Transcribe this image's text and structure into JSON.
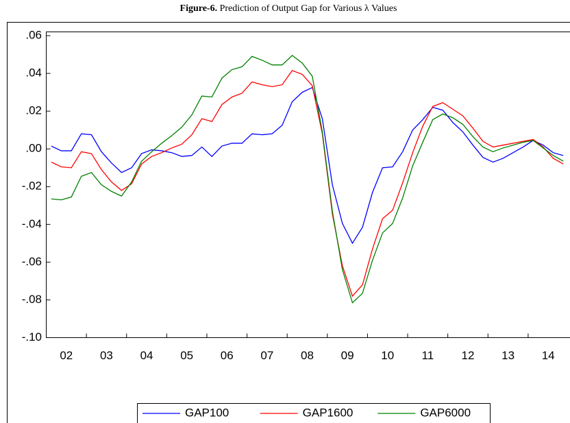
{
  "chart_data": {
    "type": "line",
    "title_label": "Figure-6.",
    "title": "Prediction of Output Gap for Various λ Values",
    "categories": [
      null,
      "02",
      null,
      null,
      null,
      "03",
      null,
      null,
      null,
      "04",
      null,
      null,
      null,
      "05",
      null,
      null,
      null,
      "06",
      null,
      null,
      null,
      "07",
      null,
      null,
      null,
      "08",
      null,
      null,
      null,
      "09",
      null,
      null,
      null,
      "10",
      null,
      null,
      null,
      "11",
      null,
      null,
      null,
      "12",
      null,
      null,
      null,
      "13",
      null,
      null,
      null,
      "14",
      null,
      null
    ],
    "ylim": [
      -0.1,
      0.062
    ],
    "yticks": [
      {
        "value": 0.06,
        "label": ".06"
      },
      {
        "value": 0.04,
        "label": ".04"
      },
      {
        "value": 0.02,
        "label": ".02"
      },
      {
        "value": 0.0,
        "label": ".00"
      },
      {
        "value": -0.02,
        "label": "-.02"
      },
      {
        "value": -0.04,
        "label": "-.04"
      },
      {
        "value": -0.06,
        "label": "-.06"
      },
      {
        "value": -0.08,
        "label": "-.08"
      },
      {
        "value": -0.1,
        "label": "-.10"
      }
    ],
    "grid": false,
    "legend": "bottom",
    "series": [
      {
        "name": "GAP100",
        "color": "#0000ff",
        "values": [
          0.0015,
          -0.001,
          -0.001,
          0.008,
          0.0075,
          -0.0015,
          -0.0075,
          -0.0125,
          -0.01,
          -0.0025,
          -0.0005,
          -0.001,
          -0.002,
          -0.004,
          -0.0035,
          0.001,
          -0.004,
          0.0015,
          0.003,
          0.003,
          0.008,
          0.0075,
          0.008,
          0.0125,
          0.025,
          0.03,
          0.0325,
          0.016,
          -0.019,
          -0.0395,
          -0.05,
          -0.0415,
          -0.023,
          -0.01,
          -0.0095,
          -0.0015,
          0.01,
          0.0155,
          0.022,
          0.0205,
          0.014,
          0.009,
          0.002,
          -0.0045,
          -0.007,
          -0.005,
          -0.002,
          0.001,
          0.0045,
          0.002,
          -0.002,
          -0.0035
        ]
      },
      {
        "name": "GAP1600",
        "color": "#ff0000",
        "values": [
          -0.007,
          -0.0095,
          -0.01,
          -0.0015,
          -0.0025,
          -0.011,
          -0.0175,
          -0.022,
          -0.0185,
          -0.008,
          -0.004,
          -0.002,
          0.0005,
          0.0025,
          0.0075,
          0.016,
          0.0145,
          0.0235,
          0.0275,
          0.0295,
          0.0355,
          0.034,
          0.033,
          0.034,
          0.0415,
          0.0395,
          0.0335,
          0.008,
          -0.0345,
          -0.062,
          -0.078,
          -0.072,
          -0.053,
          -0.037,
          -0.0325,
          -0.018,
          -0.002,
          0.012,
          0.0225,
          0.0245,
          0.021,
          0.0175,
          0.011,
          0.004,
          0.001,
          0.002,
          0.003,
          0.004,
          0.005,
          0.001,
          -0.005,
          -0.008
        ]
      },
      {
        "name": "GAP6000",
        "color": "#008000",
        "values": [
          -0.0265,
          -0.027,
          -0.0255,
          -0.0145,
          -0.0125,
          -0.019,
          -0.0225,
          -0.025,
          -0.0175,
          -0.0065,
          -0.0015,
          0.003,
          0.007,
          0.0115,
          0.018,
          0.028,
          0.0275,
          0.0375,
          0.042,
          0.0435,
          0.049,
          0.047,
          0.0445,
          0.0445,
          0.0495,
          0.0455,
          0.0385,
          0.009,
          -0.033,
          -0.064,
          -0.0815,
          -0.0765,
          -0.059,
          -0.0445,
          -0.0395,
          -0.026,
          -0.009,
          0.0035,
          0.0155,
          0.0185,
          0.0165,
          0.013,
          0.0065,
          0.001,
          -0.0015,
          0.0005,
          0.002,
          0.0035,
          0.0045,
          0.0005,
          -0.0035,
          -0.0065
        ]
      }
    ]
  }
}
